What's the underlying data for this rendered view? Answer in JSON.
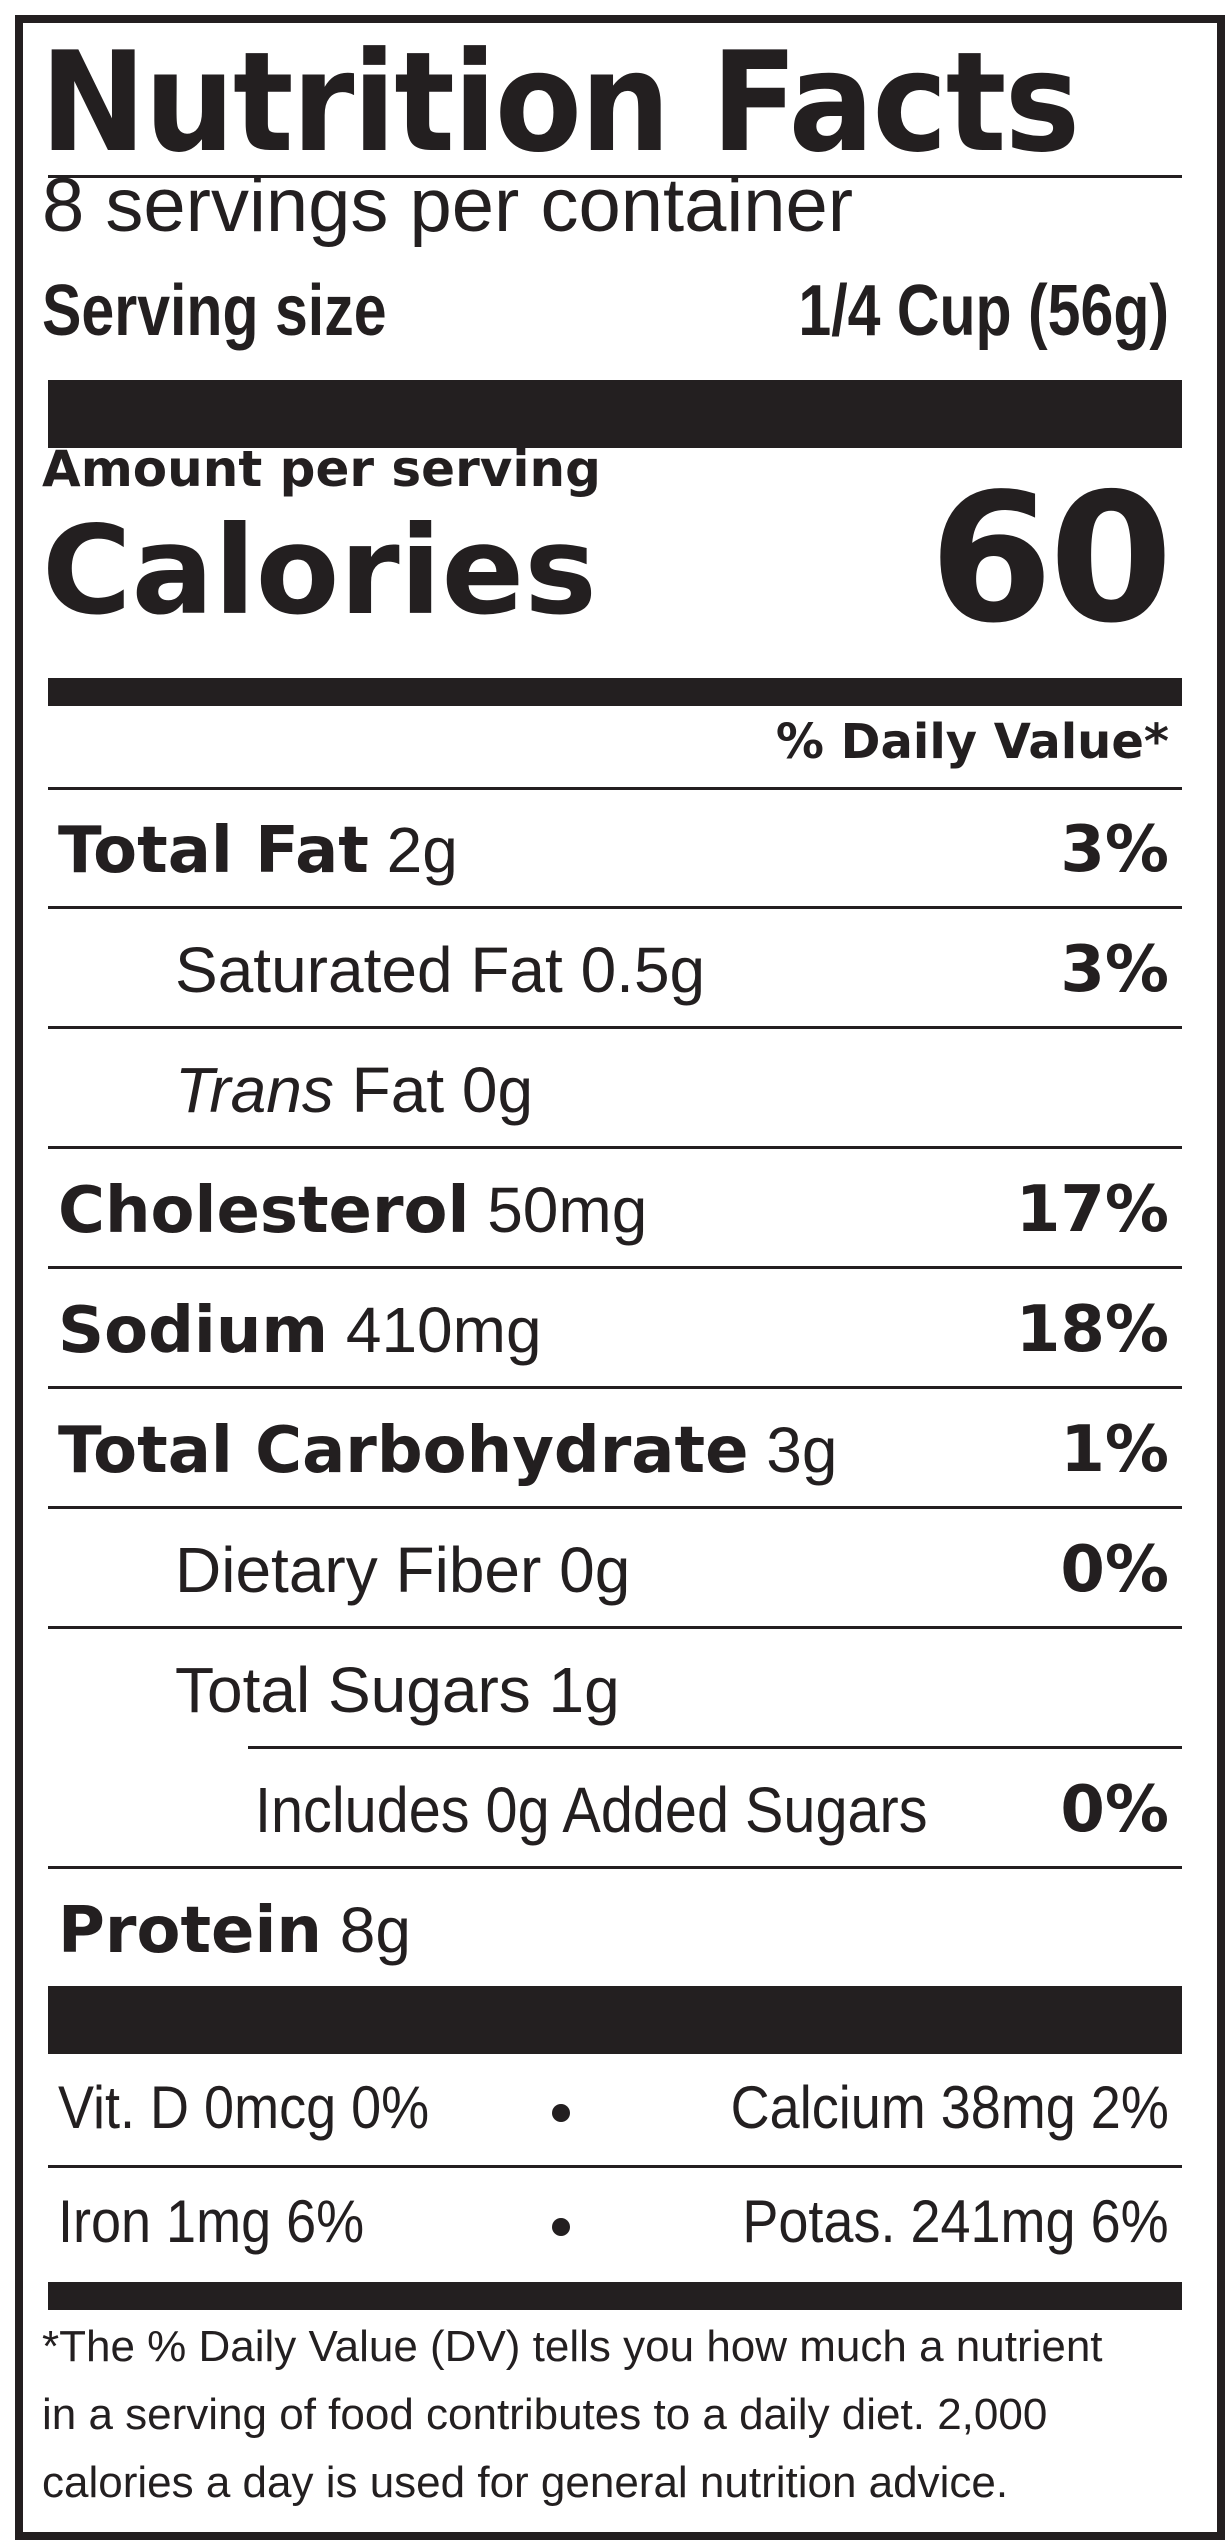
{
  "title": "Nutrition Facts",
  "servings_per_container": "8 servings per container",
  "serving_size": {
    "label": "Serving size",
    "value": "1/4 Cup (56g)"
  },
  "amount_per_serving": "Amount per serving",
  "calories": {
    "label": "Calories",
    "value": "60"
  },
  "daily_value_header": "% Daily Value*",
  "nutrients": {
    "total_fat": {
      "name": "Total Fat",
      "amount": "2g",
      "dv": "3%"
    },
    "saturated_fat": {
      "name": "Saturated Fat 0.5g",
      "dv": "3%"
    },
    "trans_fat": {
      "name_italic": "Trans",
      "name_rest": "Fat 0g"
    },
    "cholesterol": {
      "name": "Cholesterol",
      "amount": "50mg",
      "dv": "17%"
    },
    "sodium": {
      "name": "Sodium",
      "amount": "410mg",
      "dv": "18%"
    },
    "total_carbohydrate": {
      "name": "Total Carbohydrate",
      "amount": "3g",
      "dv": "1%"
    },
    "dietary_fiber": {
      "name": "Dietary Fiber 0g",
      "dv": "0%"
    },
    "total_sugars": {
      "name": "Total Sugars 1g"
    },
    "added_sugars": {
      "name": "Includes 0g Added Sugars",
      "dv": "0%"
    },
    "protein": {
      "name": "Protein",
      "amount": "8g"
    }
  },
  "vitamins": {
    "vit_d": "Vit. D 0mcg 0%",
    "calcium": "Calcium 38mg 2%",
    "iron": "Iron 1mg 6%",
    "potassium": "Potas. 241mg 6%"
  },
  "footnote": {
    "line1": "*The % Daily Value (DV) tells you how much a nutrient",
    "line2": "in a serving of food contributes to a daily diet. 2,000",
    "line3": "calories a day is used for general nutrition advice."
  }
}
